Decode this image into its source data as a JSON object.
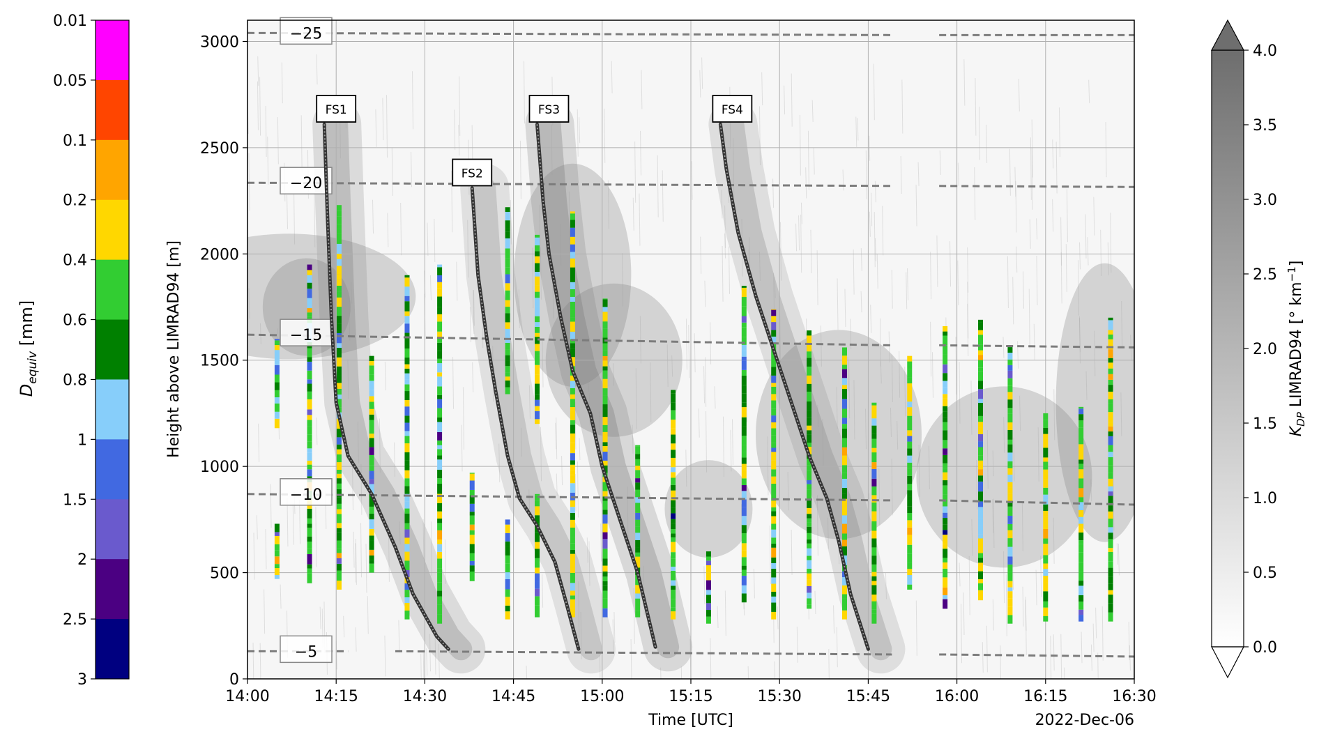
{
  "chart_data": {
    "type": "heatmap",
    "xlabel": "Time [UTC]",
    "ylabel": "Height above LIMRAD94 [m]",
    "date_label": "2022-Dec-06",
    "xlim": [
      "14:00",
      "16:30"
    ],
    "ylim": [
      0,
      3100
    ],
    "x_ticks": [
      "14:00",
      "14:15",
      "14:30",
      "14:45",
      "15:00",
      "15:15",
      "15:30",
      "15:45",
      "16:00",
      "16:15",
      "16:30"
    ],
    "y_ticks": [
      0,
      500,
      1000,
      1500,
      2000,
      2500,
      3000
    ],
    "grid": true,
    "background_field": {
      "name": "K_DP LIMRAD94",
      "colorbar_label": "K",
      "colorbar_label_sub": "DP",
      "colorbar_label_rest": " LIMRAD94 [° km",
      "colorbar_label_sup": "−1",
      "colorbar_label_end": "]",
      "range": [
        0.0,
        4.0
      ],
      "ticks": [
        "0.0",
        "0.5",
        "1.0",
        "1.5",
        "2.0",
        "2.5",
        "3.0",
        "3.5",
        "4.0"
      ],
      "colors": [
        "#ffffff",
        "#6e6e6e"
      ]
    },
    "size_colorbar": {
      "label_main": "D",
      "label_sub": "equiv",
      "label_unit": " [mm]",
      "ticks": [
        "0.01",
        "0.05",
        "0.1",
        "0.2",
        "0.4",
        "0.6",
        "0.8",
        "1",
        "1.5",
        "2",
        "2.5",
        "3"
      ],
      "colors": [
        "#ff00ff",
        "#ff4500",
        "#ffa500",
        "#ffd700",
        "#32cd32",
        "#008000",
        "#87cefa",
        "#4169e1",
        "#6a5acd",
        "#4b0082",
        "#000080"
      ]
    },
    "isotherms": [
      {
        "label": "−25",
        "segments": [
          [
            0,
            3040,
            109,
            3030
          ],
          [
            117,
            3030,
            150,
            3030
          ]
        ]
      },
      {
        "label": "−20",
        "segments": [
          [
            0,
            2335,
            109,
            2320
          ],
          [
            117,
            2320,
            150,
            2315
          ]
        ]
      },
      {
        "label": "−15",
        "segments": [
          [
            0,
            1620,
            109,
            1570
          ],
          [
            117,
            1570,
            150,
            1560
          ]
        ]
      },
      {
        "label": "−10",
        "segments": [
          [
            0,
            870,
            109,
            840
          ],
          [
            117,
            840,
            150,
            820
          ]
        ]
      },
      {
        "label": "−5",
        "segments": [
          [
            0,
            130,
            17,
            130
          ],
          [
            25,
            130,
            109,
            115
          ],
          [
            117,
            115,
            150,
            105
          ]
        ]
      }
    ],
    "fallstreaks": [
      {
        "label": "FS1",
        "label_x": 15,
        "label_y": 2680,
        "points": [
          [
            13,
            2610
          ],
          [
            13.5,
            2200
          ],
          [
            14.2,
            1700
          ],
          [
            15,
            1300
          ],
          [
            17,
            1050
          ],
          [
            21,
            870
          ],
          [
            25,
            620
          ],
          [
            28,
            400
          ],
          [
            32,
            200
          ],
          [
            34,
            140
          ]
        ]
      },
      {
        "label": "FS2",
        "label_x": 38,
        "label_y": 2380,
        "points": [
          [
            38,
            2310
          ],
          [
            39,
            1900
          ],
          [
            40.5,
            1600
          ],
          [
            42,
            1350
          ],
          [
            44,
            1050
          ],
          [
            46,
            850
          ],
          [
            49,
            720
          ],
          [
            52,
            550
          ],
          [
            54,
            350
          ],
          [
            56,
            140
          ]
        ]
      },
      {
        "label": "FS3",
        "label_x": 51,
        "label_y": 2680,
        "points": [
          [
            49,
            2610
          ],
          [
            50,
            2250
          ],
          [
            51,
            2000
          ],
          [
            53,
            1700
          ],
          [
            55,
            1450
          ],
          [
            58,
            1250
          ],
          [
            60,
            1000
          ],
          [
            63,
            750
          ],
          [
            66,
            500
          ],
          [
            69,
            150
          ]
        ]
      },
      {
        "label": "FS4",
        "label_x": 82,
        "label_y": 2680,
        "points": [
          [
            80,
            2610
          ],
          [
            81,
            2400
          ],
          [
            83,
            2100
          ],
          [
            86,
            1800
          ],
          [
            89,
            1550
          ],
          [
            92,
            1300
          ],
          [
            95,
            1050
          ],
          [
            98,
            850
          ],
          [
            100,
            650
          ],
          [
            102,
            400
          ],
          [
            105,
            140
          ]
        ]
      }
    ],
    "size_profiles": [
      {
        "t": 5,
        "bottom": 1180,
        "top": 1600
      },
      {
        "t": 5,
        "bottom": 470,
        "top": 730
      },
      {
        "t": 10.5,
        "bottom": 450,
        "top": 1950
      },
      {
        "t": 15.5,
        "bottom": 420,
        "top": 2230
      },
      {
        "t": 21,
        "bottom": 500,
        "top": 1520
      },
      {
        "t": 27,
        "bottom": 280,
        "top": 1900
      },
      {
        "t": 32.5,
        "bottom": 260,
        "top": 1950
      },
      {
        "t": 38,
        "bottom": 460,
        "top": 970
      },
      {
        "t": 44,
        "bottom": 1340,
        "top": 2220
      },
      {
        "t": 44,
        "bottom": 280,
        "top": 750
      },
      {
        "t": 49,
        "bottom": 1200,
        "top": 2090
      },
      {
        "t": 49,
        "bottom": 290,
        "top": 870
      },
      {
        "t": 55,
        "bottom": 290,
        "top": 2200
      },
      {
        "t": 60.5,
        "bottom": 290,
        "top": 1790
      },
      {
        "t": 66,
        "bottom": 290,
        "top": 1100
      },
      {
        "t": 72,
        "bottom": 280,
        "top": 1360
      },
      {
        "t": 78,
        "bottom": 260,
        "top": 600
      },
      {
        "t": 84,
        "bottom": 360,
        "top": 1850
      },
      {
        "t": 89,
        "bottom": 280,
        "top": 1740
      },
      {
        "t": 95,
        "bottom": 330,
        "top": 1640
      },
      {
        "t": 101,
        "bottom": 280,
        "top": 1560
      },
      {
        "t": 106,
        "bottom": 260,
        "top": 1300
      },
      {
        "t": 112,
        "bottom": 420,
        "top": 1520
      },
      {
        "t": 118,
        "bottom": 330,
        "top": 1660
      },
      {
        "t": 124,
        "bottom": 370,
        "top": 1690
      },
      {
        "t": 129,
        "bottom": 260,
        "top": 1570
      },
      {
        "t": 135,
        "bottom": 270,
        "top": 1250
      },
      {
        "t": 141,
        "bottom": 270,
        "top": 1280
      },
      {
        "t": 146,
        "bottom": 270,
        "top": 1700
      }
    ]
  }
}
